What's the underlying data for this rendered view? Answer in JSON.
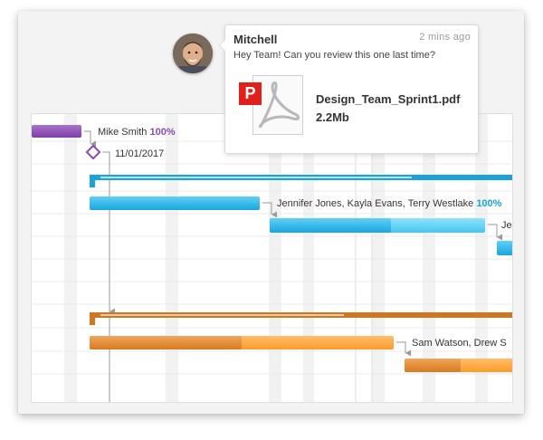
{
  "chat": {
    "sender": "Mitchell",
    "time": "2 mins ago",
    "message": "Hey Team! Can you review this one last time?",
    "attachment": {
      "name": "Design_Team_Sprint1.pdf",
      "size": "2.2Mb",
      "badge": "P"
    }
  },
  "gantt": {
    "milestone_date": "11/01/2017",
    "labels": {
      "mike_name": "Mike Smith",
      "mike_pct": "100%",
      "jennifer_names": "Jennifer Jones, Kayla Evans, Terry Westlake",
      "jennifer_pct": "100%",
      "je_cut": "Je",
      "sam_names": "Sam Watson, Drew S"
    }
  },
  "colors": {
    "purple": "#8a4bb0",
    "blue": "#1aa3d9",
    "orange": "#e07f22",
    "pdf_red": "#e0201b"
  }
}
